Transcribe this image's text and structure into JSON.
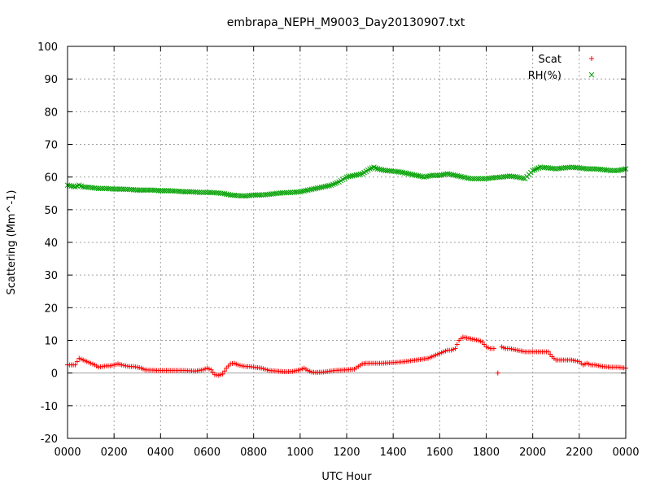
{
  "chart_data": {
    "type": "scatter",
    "title": "embrapa_NEPH_M9003_Day20130907.txt",
    "xlabel": "UTC Hour",
    "ylabel": "Scattering (Mm^-1)",
    "xlim": [
      0,
      24
    ],
    "ylim": [
      -20,
      100
    ],
    "x_ticks": [
      0,
      2,
      4,
      6,
      8,
      10,
      12,
      14,
      16,
      18,
      20,
      22,
      24
    ],
    "x_tick_labels": [
      "0000",
      "0200",
      "0400",
      "0600",
      "0800",
      "1000",
      "1200",
      "1400",
      "1600",
      "1800",
      "2000",
      "2200",
      "0000"
    ],
    "y_ticks": [
      -20,
      -10,
      0,
      10,
      20,
      30,
      40,
      50,
      60,
      70,
      80,
      90,
      100
    ],
    "grid": true,
    "legend_position": "top-right",
    "series": [
      {
        "name": "Scat",
        "marker": "plus",
        "color": "#ff0000",
        "x": [
          0.0,
          0.33,
          0.5,
          0.67,
          0.83,
          1.0,
          1.17,
          1.33,
          1.5,
          1.67,
          1.83,
          2.0,
          2.17,
          2.33,
          2.5,
          2.67,
          2.83,
          3.0,
          3.17,
          3.33,
          3.5,
          3.67,
          3.83,
          4.0,
          4.5,
          5.0,
          5.5,
          5.83,
          6.0,
          6.17,
          6.33,
          6.5,
          6.67,
          6.83,
          7.0,
          7.17,
          7.33,
          7.5,
          7.67,
          7.83,
          8.0,
          8.33,
          8.67,
          9.0,
          9.33,
          9.67,
          10.0,
          10.17,
          10.33,
          10.5,
          10.67,
          11.0,
          11.5,
          12.0,
          12.33,
          12.67,
          12.83,
          13.0,
          13.5,
          14.0,
          14.5,
          15.0,
          15.5,
          15.83,
          16.0,
          16.33,
          16.5,
          16.67,
          16.83,
          17.0,
          17.33,
          17.67,
          17.83,
          18.0,
          18.17,
          18.33,
          18.5,
          18.67,
          18.83,
          19.0,
          19.33,
          19.67,
          20.0,
          20.33,
          20.67,
          20.83,
          21.0,
          21.33,
          21.67,
          22.0,
          22.17,
          22.33,
          22.5,
          22.67,
          23.0,
          23.33,
          23.67,
          24.0
        ],
        "y": [
          2.5,
          2.5,
          4.5,
          4.0,
          3.5,
          3.0,
          2.5,
          1.8,
          2.0,
          2.2,
          2.2,
          2.5,
          2.8,
          2.5,
          2.2,
          2.0,
          2.0,
          1.8,
          1.5,
          1.0,
          0.9,
          0.9,
          0.8,
          0.8,
          0.8,
          0.8,
          0.6,
          1.0,
          1.5,
          1.0,
          -0.5,
          -0.7,
          -0.3,
          1.5,
          2.8,
          3.0,
          2.5,
          2.2,
          2.0,
          2.0,
          1.8,
          1.5,
          0.8,
          0.6,
          0.4,
          0.5,
          1.0,
          1.5,
          0.8,
          0.3,
          0.2,
          0.3,
          0.8,
          1.0,
          1.2,
          2.8,
          3.0,
          3.0,
          3.0,
          3.2,
          3.5,
          4.0,
          4.5,
          5.5,
          6.0,
          7.0,
          7.0,
          7.5,
          10.0,
          11.0,
          10.5,
          10.0,
          9.5,
          8.0,
          7.5,
          7.5,
          0.0,
          8.0,
          7.5,
          7.5,
          7.0,
          6.5,
          6.5,
          6.5,
          6.5,
          5.0,
          4.0,
          4.0,
          4.0,
          3.5,
          2.5,
          3.0,
          2.5,
          2.5,
          2.0,
          1.8,
          1.8,
          1.5
        ]
      },
      {
        "name": "RH(%)",
        "marker": "cross",
        "color": "#00a000",
        "x": [
          0.0,
          0.33,
          0.5,
          0.67,
          1.0,
          1.33,
          1.67,
          2.0,
          2.33,
          2.67,
          3.0,
          3.33,
          3.67,
          4.0,
          4.33,
          4.67,
          5.0,
          5.33,
          5.67,
          6.0,
          6.33,
          6.67,
          7.0,
          7.33,
          7.67,
          8.0,
          8.33,
          8.67,
          9.0,
          9.33,
          9.67,
          10.0,
          10.33,
          10.67,
          11.0,
          11.33,
          11.67,
          12.0,
          12.33,
          12.67,
          13.0,
          13.17,
          13.33,
          13.67,
          14.0,
          14.33,
          14.67,
          15.0,
          15.33,
          15.67,
          16.0,
          16.33,
          16.67,
          17.0,
          17.33,
          17.67,
          18.0,
          18.33,
          18.67,
          19.0,
          19.33,
          19.67,
          20.0,
          20.33,
          20.67,
          21.0,
          21.33,
          21.67,
          22.0,
          22.33,
          22.67,
          23.0,
          23.33,
          23.67,
          24.0
        ],
        "y": [
          57.5,
          57.0,
          57.5,
          57.0,
          56.8,
          56.5,
          56.5,
          56.3,
          56.3,
          56.2,
          56.0,
          56.0,
          56.0,
          55.8,
          55.8,
          55.7,
          55.5,
          55.5,
          55.3,
          55.3,
          55.2,
          55.0,
          54.5,
          54.3,
          54.2,
          54.5,
          54.5,
          54.7,
          55.0,
          55.2,
          55.3,
          55.5,
          56.0,
          56.5,
          57.0,
          57.5,
          58.5,
          60.0,
          60.5,
          61.0,
          62.5,
          63.0,
          62.5,
          62.0,
          61.8,
          61.5,
          61.0,
          60.5,
          60.0,
          60.5,
          60.5,
          61.0,
          60.5,
          60.0,
          59.5,
          59.5,
          59.5,
          59.8,
          60.0,
          60.3,
          60.0,
          59.5,
          62.0,
          63.0,
          62.8,
          62.5,
          62.8,
          63.0,
          62.8,
          62.5,
          62.5,
          62.3,
          62.0,
          62.0,
          62.5
        ]
      }
    ]
  }
}
